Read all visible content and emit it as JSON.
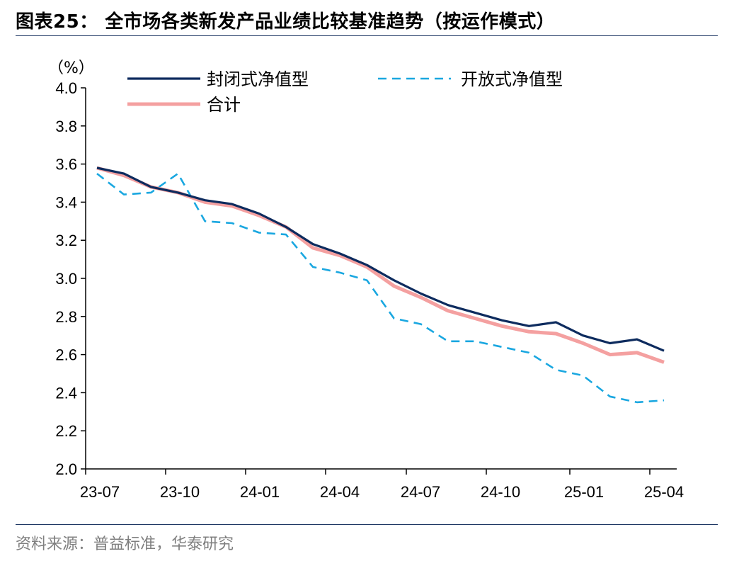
{
  "title": "图表25：  全市场各类新发产品业绩比较基准趋势（按运作模式）",
  "source": "资料来源：普益标准，华泰研究",
  "colors": {
    "closed": "#0d2b5e",
    "open": "#1aa7e0",
    "total": "#f4a0a0",
    "axis": "#000000",
    "rule": "#1f3864"
  },
  "chart_data": {
    "type": "line",
    "unit": "（%）",
    "ylim": [
      2.0,
      4.0
    ],
    "yticks": [
      "4.0",
      "3.8",
      "3.6",
      "3.4",
      "3.2",
      "3.0",
      "2.8",
      "2.6",
      "2.4",
      "2.2",
      "2.0"
    ],
    "xtick_labels": [
      "23-07",
      "23-10",
      "24-01",
      "24-04",
      "24-07",
      "24-10",
      "25-01",
      "25-04"
    ],
    "x_start": "2023-07",
    "x_end": "2025-04",
    "grid": false,
    "legend": "top",
    "series": [
      {
        "name": "封闭式净值型",
        "key": "closed",
        "style": "solid",
        "values": [
          3.58,
          3.55,
          3.48,
          3.45,
          3.41,
          3.39,
          3.34,
          3.27,
          3.18,
          3.13,
          3.07,
          2.99,
          2.92,
          2.86,
          2.82,
          2.78,
          2.75,
          2.77,
          2.7,
          2.66,
          2.68,
          2.62
        ]
      },
      {
        "name": "开放式净值型",
        "key": "open",
        "style": "dashed",
        "values": [
          3.55,
          3.44,
          3.45,
          3.55,
          3.3,
          3.29,
          3.24,
          3.23,
          3.06,
          3.03,
          2.99,
          2.79,
          2.76,
          2.67,
          2.67,
          2.64,
          2.61,
          2.52,
          2.49,
          2.38,
          2.35,
          2.36
        ]
      },
      {
        "name": "合计",
        "key": "total",
        "style": "solid-thick",
        "values": [
          3.58,
          3.54,
          3.48,
          3.45,
          3.4,
          3.38,
          3.33,
          3.27,
          3.16,
          3.12,
          3.06,
          2.96,
          2.9,
          2.83,
          2.79,
          2.75,
          2.72,
          2.71,
          2.66,
          2.6,
          2.61,
          2.56
        ]
      }
    ]
  }
}
